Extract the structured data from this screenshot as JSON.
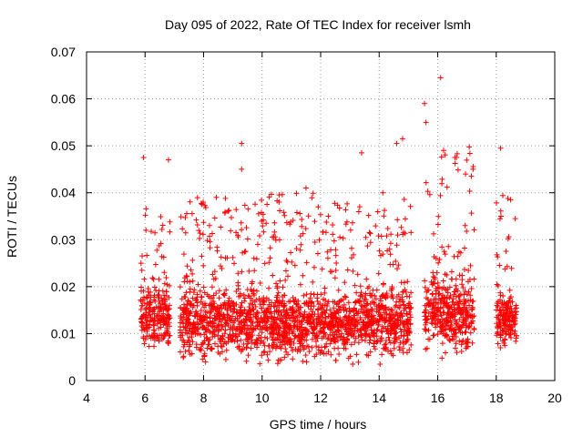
{
  "chart_data": {
    "type": "scatter",
    "title": "Day 095 of 2022, Rate Of TEC Index for receiver lsmh",
    "xlabel": "GPS time / hours",
    "ylabel": "ROTI / TECUs",
    "xlim": [
      4,
      20
    ],
    "ylim": [
      0,
      0.07
    ],
    "x_ticks": [
      "4",
      "6",
      "8",
      "10",
      "12",
      "14",
      "16",
      "18",
      "20"
    ],
    "y_ticks": [
      "0",
      "0.01",
      "0.02",
      "0.03",
      "0.04",
      "0.05",
      "0.06",
      "0.07"
    ],
    "grid": true,
    "marker": "plus",
    "color": "#ff0000",
    "segments": [
      {
        "x_start": 5.85,
        "x_end": 6.85,
        "base": 0.014,
        "spread": 0.009,
        "peak": 0.047
      },
      {
        "x_start": 7.2,
        "x_end": 15.1,
        "base": 0.012,
        "spread": 0.009,
        "peak": 0.051
      },
      {
        "x_start": 15.55,
        "x_end": 17.25,
        "base": 0.014,
        "spread": 0.01,
        "peak": 0.064
      },
      {
        "x_start": 18.0,
        "x_end": 18.7,
        "base": 0.013,
        "spread": 0.007,
        "peak": 0.05
      }
    ],
    "highlights": [
      {
        "x": 5.95,
        "y": 0.0475
      },
      {
        "x": 6.8,
        "y": 0.047
      },
      {
        "x": 9.3,
        "y": 0.0505
      },
      {
        "x": 9.3,
        "y": 0.045
      },
      {
        "x": 11.5,
        "y": 0.041
      },
      {
        "x": 13.4,
        "y": 0.0485
      },
      {
        "x": 14.6,
        "y": 0.0505
      },
      {
        "x": 14.8,
        "y": 0.0515
      },
      {
        "x": 15.55,
        "y": 0.059
      },
      {
        "x": 15.6,
        "y": 0.055
      },
      {
        "x": 16.1,
        "y": 0.0645
      },
      {
        "x": 16.2,
        "y": 0.049
      },
      {
        "x": 17.15,
        "y": 0.0435
      },
      {
        "x": 18.15,
        "y": 0.0495
      },
      {
        "x": 18.65,
        "y": 0.0345
      }
    ]
  }
}
